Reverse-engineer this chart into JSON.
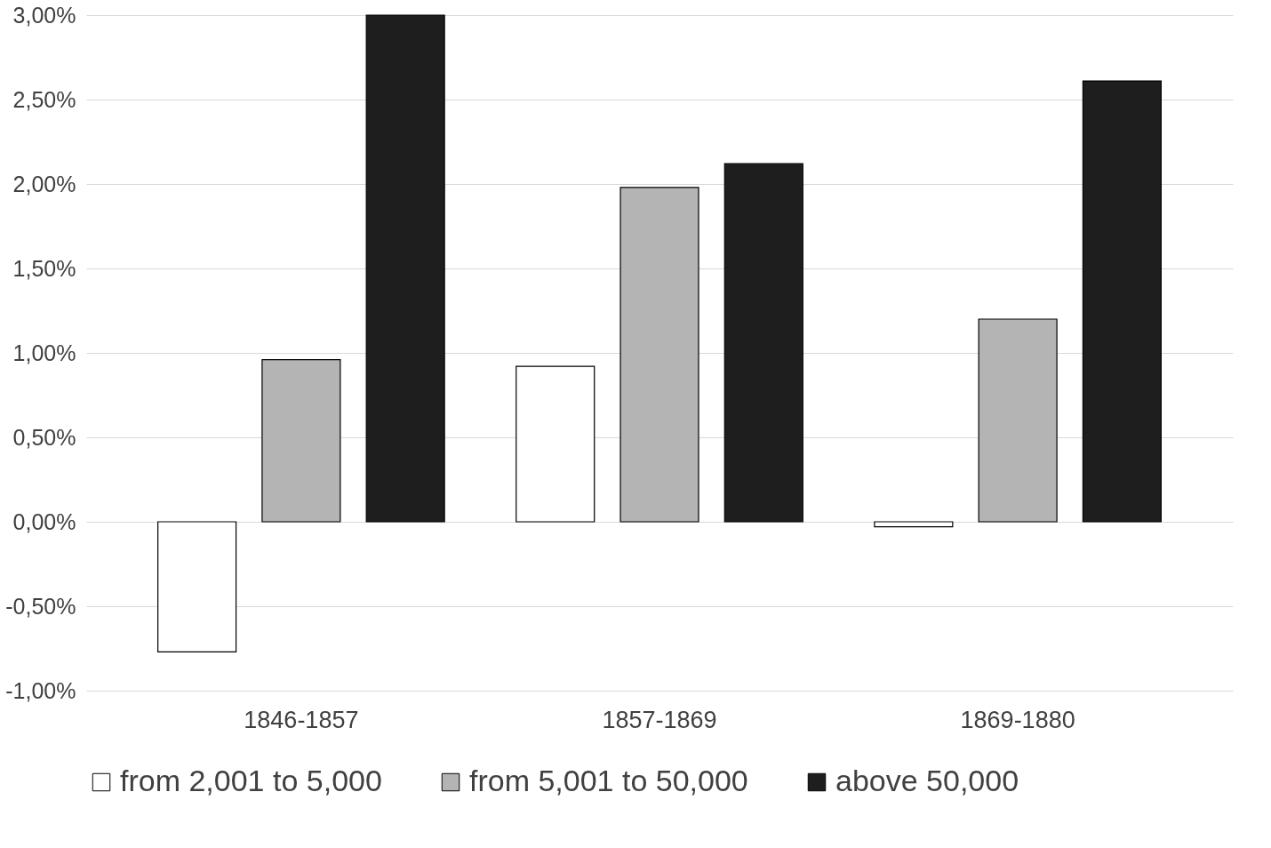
{
  "chart_data": {
    "type": "bar",
    "categories": [
      "1846-1857",
      "1857-1869",
      "1869-1880"
    ],
    "series": [
      {
        "name": "from 2,001 to 5,000",
        "color": "#ffffff",
        "values": [
          -0.77,
          0.92,
          -0.03
        ]
      },
      {
        "name": "from 5,001 to 50,000",
        "color": "#b4b4b4",
        "values": [
          0.96,
          1.98,
          1.2
        ]
      },
      {
        "name": "above 50,000",
        "color": "#1e1e1e",
        "values": [
          3.0,
          2.12,
          2.61
        ]
      }
    ],
    "ylim": [
      -1,
      3
    ],
    "yticks": [
      {
        "value": -1,
        "label": "-1,00%"
      },
      {
        "value": -0.5,
        "label": "-0,50%"
      },
      {
        "value": 0,
        "label": "0,00%"
      },
      {
        "value": 0.5,
        "label": "0,50%"
      },
      {
        "value": 1,
        "label": "1,00%"
      },
      {
        "value": 1.5,
        "label": "1,50%"
      },
      {
        "value": 2,
        "label": "2,00%"
      },
      {
        "value": 2.5,
        "label": "2,50%"
      },
      {
        "value": 3,
        "label": "3,00%"
      }
    ],
    "grid": "y",
    "legend": "bottom"
  }
}
